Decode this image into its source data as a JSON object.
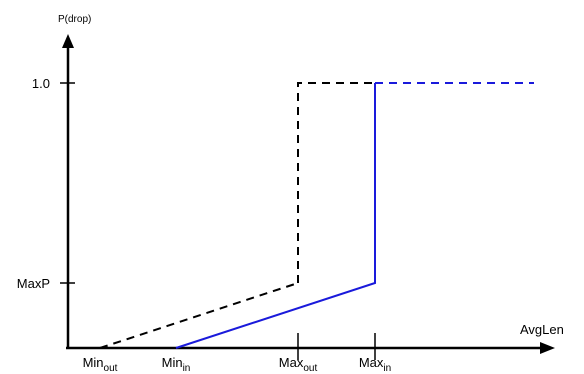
{
  "chart_data": {
    "type": "line",
    "ylabel": "P(drop)",
    "xlabel": "AvgLen",
    "x_ticks": [
      {
        "key": "min_out",
        "main": "Min",
        "sub": "out"
      },
      {
        "key": "min_in",
        "main": "Min",
        "sub": "in"
      },
      {
        "key": "max_out",
        "main": "Max",
        "sub": "out"
      },
      {
        "key": "max_in",
        "main": "Max",
        "sub": "in"
      }
    ],
    "y_ticks": [
      {
        "key": "maxp",
        "label": "MaxP",
        "value": 0.2
      },
      {
        "key": "one",
        "label": "1.0",
        "value": 1.0
      }
    ],
    "series": [
      {
        "color": "#000000",
        "dashed": true,
        "segments": [
          {
            "dashed": true,
            "points": [
              [
                "min_out",
                0
              ],
              [
                "max_out",
                0.2
              ]
            ]
          },
          {
            "dashed": true,
            "points": [
              [
                "max_out",
                0.2
              ],
              [
                "max_out",
                1.0
              ],
              [
                "max_in",
                1.0
              ]
            ]
          }
        ]
      },
      {
        "color": "#1a1adb",
        "segments": [
          {
            "dashed": false,
            "points": [
              [
                "min_in",
                0
              ],
              [
                "max_in",
                0.2
              ],
              [
                "max_in",
                1.0
              ]
            ]
          },
          {
            "dashed": true,
            "points": [
              [
                "max_in",
                1.0
              ],
              [
                "end",
                1.0
              ]
            ]
          }
        ]
      }
    ]
  }
}
